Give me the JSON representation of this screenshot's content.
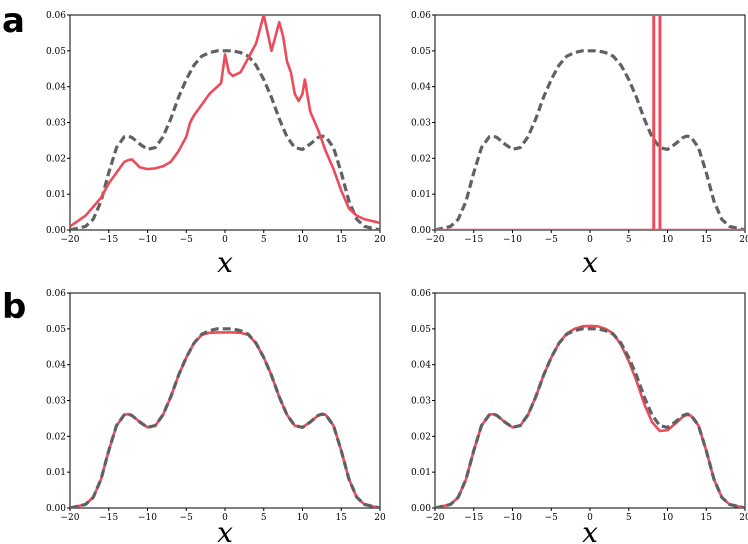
{
  "panel_labels": [
    "a",
    "b"
  ],
  "colors": {
    "reference": "#5f6262",
    "estimate": "#ee4b5a"
  },
  "chart_data": [
    {
      "type": "line",
      "panel": "a-left",
      "xlabel": "x",
      "ylabel": "",
      "xlim": [
        -20,
        20
      ],
      "ylim": [
        0,
        0.06
      ],
      "xticks": [
        -20,
        -15,
        -10,
        -5,
        0,
        5,
        10,
        15,
        20
      ],
      "yticks": [
        0.0,
        0.01,
        0.02,
        0.03,
        0.04,
        0.05,
        0.06
      ],
      "tick_labels_x": [
        "−20",
        "−15",
        "−10",
        "−5",
        "0",
        "5",
        "10",
        "15",
        "20"
      ],
      "tick_labels_y": [
        "0.00",
        "0.01",
        "0.02",
        "0.03",
        "0.04",
        "0.05",
        "0.06"
      ],
      "grid": false,
      "legend": "none",
      "series": [
        {
          "style": "dashed",
          "color": "#5f6262",
          "x": [
            -20,
            -18,
            -17,
            -16,
            -15,
            -14,
            -13,
            -12.5,
            -12,
            -11,
            -10,
            -9,
            -8,
            -7,
            -6,
            -5,
            -4,
            -3,
            -2,
            -1,
            0,
            1,
            2,
            3,
            4,
            5,
            6,
            7,
            8,
            9,
            10,
            11,
            12,
            12.5,
            13,
            14,
            15,
            16,
            17,
            18,
            20
          ],
          "y": [
            0,
            0.001,
            0.003,
            0.008,
            0.016,
            0.023,
            0.026,
            0.0262,
            0.0258,
            0.024,
            0.0225,
            0.023,
            0.026,
            0.031,
            0.037,
            0.042,
            0.046,
            0.0485,
            0.0495,
            0.05,
            0.05,
            0.05,
            0.0495,
            0.0485,
            0.046,
            0.042,
            0.037,
            0.031,
            0.026,
            0.023,
            0.0225,
            0.024,
            0.0258,
            0.0262,
            0.026,
            0.023,
            0.016,
            0.008,
            0.003,
            0.001,
            0
          ]
        },
        {
          "style": "solid",
          "color": "#ee4b5a",
          "x": [
            -20,
            -18,
            -16,
            -15,
            -14,
            -13,
            -12.5,
            -12,
            -11,
            -10,
            -9,
            -8,
            -7,
            -6,
            -5,
            -4.5,
            -4,
            -3,
            -2,
            -1,
            -0.5,
            0,
            0.5,
            1,
            2,
            3,
            4,
            4.5,
            5,
            5.5,
            6,
            7,
            7.5,
            8,
            8.5,
            9,
            9.5,
            10,
            10.3,
            11,
            12,
            13,
            14,
            15,
            16,
            17,
            18,
            20
          ],
          "y": [
            0.001,
            0.004,
            0.009,
            0.013,
            0.016,
            0.019,
            0.0195,
            0.0197,
            0.0175,
            0.017,
            0.0172,
            0.0178,
            0.019,
            0.022,
            0.026,
            0.03,
            0.032,
            0.035,
            0.038,
            0.04,
            0.041,
            0.049,
            0.044,
            0.043,
            0.044,
            0.048,
            0.052,
            0.056,
            0.06,
            0.055,
            0.05,
            0.058,
            0.054,
            0.047,
            0.044,
            0.038,
            0.036,
            0.038,
            0.042,
            0.033,
            0.028,
            0.022,
            0.017,
            0.011,
            0.006,
            0.004,
            0.003,
            0.002
          ]
        }
      ]
    },
    {
      "type": "line",
      "panel": "a-right",
      "xlabel": "x",
      "ylabel": "",
      "xlim": [
        -20,
        20
      ],
      "ylim": [
        0,
        0.06
      ],
      "xticks": [
        -20,
        -15,
        -10,
        -5,
        0,
        5,
        10,
        15,
        20
      ],
      "yticks": [
        0.0,
        0.01,
        0.02,
        0.03,
        0.04,
        0.05,
        0.06
      ],
      "tick_labels_x": [
        "−20",
        "−15",
        "−10",
        "−5",
        "0",
        "5",
        "10",
        "15",
        "20"
      ],
      "tick_labels_y": [
        "0.00",
        "0.01",
        "0.02",
        "0.03",
        "0.04",
        "0.05",
        "0.06"
      ],
      "grid": false,
      "legend": "none",
      "series": [
        {
          "style": "dashed",
          "color": "#5f6262",
          "x": [
            -20,
            -18,
            -17,
            -16,
            -15,
            -14,
            -13,
            -12.5,
            -12,
            -11,
            -10,
            -9,
            -8,
            -7,
            -6,
            -5,
            -4,
            -3,
            -2,
            -1,
            0,
            1,
            2,
            3,
            4,
            5,
            6,
            7,
            8,
            9,
            10,
            11,
            12,
            12.5,
            13,
            14,
            15,
            16,
            17,
            18,
            20
          ],
          "y": [
            0,
            0.001,
            0.003,
            0.008,
            0.016,
            0.023,
            0.026,
            0.0262,
            0.0258,
            0.024,
            0.0225,
            0.023,
            0.026,
            0.031,
            0.037,
            0.042,
            0.046,
            0.0485,
            0.0495,
            0.05,
            0.05,
            0.05,
            0.0495,
            0.0485,
            0.046,
            0.042,
            0.037,
            0.031,
            0.026,
            0.023,
            0.0225,
            0.024,
            0.0258,
            0.0262,
            0.026,
            0.023,
            0.016,
            0.008,
            0.003,
            0.001,
            0
          ]
        },
        {
          "style": "solid",
          "color": "#ee4b5a",
          "x": [
            -20,
            8.2,
            8.2,
            8.25,
            8.25,
            9.0,
            9.0,
            9.05,
            9.05,
            20
          ],
          "y": [
            0,
            0,
            0.065,
            0.065,
            0,
            0,
            0.065,
            0.065,
            0,
            0
          ]
        }
      ]
    },
    {
      "type": "line",
      "panel": "b-left",
      "xlabel": "x",
      "ylabel": "",
      "xlim": [
        -20,
        20
      ],
      "ylim": [
        0,
        0.06
      ],
      "xticks": [
        -20,
        -15,
        -10,
        -5,
        0,
        5,
        10,
        15,
        20
      ],
      "yticks": [
        0.0,
        0.01,
        0.02,
        0.03,
        0.04,
        0.05,
        0.06
      ],
      "tick_labels_x": [
        "−20",
        "−15",
        "−10",
        "−5",
        "0",
        "5",
        "10",
        "15",
        "20"
      ],
      "tick_labels_y": [
        "0.00",
        "0.01",
        "0.02",
        "0.03",
        "0.04",
        "0.05",
        "0.06"
      ],
      "grid": false,
      "legend": "none",
      "series": [
        {
          "style": "solid",
          "color": "#ee4b5a",
          "x": [
            -20,
            -18,
            -17,
            -16,
            -15,
            -14,
            -13,
            -12.5,
            -12,
            -11,
            -10,
            -9,
            -8,
            -7,
            -6,
            -5,
            -4,
            -3,
            -2,
            -1,
            0,
            1,
            2,
            3,
            4,
            5,
            6,
            7,
            8,
            9,
            10,
            11,
            12,
            12.5,
            13,
            14,
            15,
            16,
            17,
            18,
            20
          ],
          "y": [
            0,
            0.001,
            0.003,
            0.008,
            0.016,
            0.023,
            0.026,
            0.0262,
            0.0258,
            0.024,
            0.0225,
            0.023,
            0.026,
            0.031,
            0.037,
            0.042,
            0.046,
            0.0483,
            0.0489,
            0.049,
            0.049,
            0.049,
            0.0489,
            0.0483,
            0.046,
            0.042,
            0.037,
            0.031,
            0.026,
            0.023,
            0.0225,
            0.024,
            0.0258,
            0.0262,
            0.026,
            0.023,
            0.016,
            0.008,
            0.003,
            0.001,
            0
          ]
        },
        {
          "style": "dashed",
          "color": "#5f6262",
          "x": [
            -20,
            -18,
            -17,
            -16,
            -15,
            -14,
            -13,
            -12.5,
            -12,
            -11,
            -10,
            -9,
            -8,
            -7,
            -6,
            -5,
            -4,
            -3,
            -2,
            -1,
            0,
            1,
            2,
            3,
            4,
            5,
            6,
            7,
            8,
            9,
            10,
            11,
            12,
            12.5,
            13,
            14,
            15,
            16,
            17,
            18,
            20
          ],
          "y": [
            0,
            0.001,
            0.003,
            0.008,
            0.016,
            0.023,
            0.026,
            0.0262,
            0.0258,
            0.024,
            0.0225,
            0.023,
            0.026,
            0.031,
            0.037,
            0.042,
            0.046,
            0.0485,
            0.0495,
            0.05,
            0.05,
            0.05,
            0.0495,
            0.0485,
            0.046,
            0.042,
            0.037,
            0.031,
            0.026,
            0.023,
            0.0225,
            0.024,
            0.0258,
            0.0262,
            0.026,
            0.023,
            0.016,
            0.008,
            0.003,
            0.001,
            0
          ]
        }
      ]
    },
    {
      "type": "line",
      "panel": "b-right",
      "xlabel": "x",
      "ylabel": "",
      "xlim": [
        -20,
        20
      ],
      "ylim": [
        0,
        0.06
      ],
      "xticks": [
        -20,
        -15,
        -10,
        -5,
        0,
        5,
        10,
        15,
        20
      ],
      "yticks": [
        0.0,
        0.01,
        0.02,
        0.03,
        0.04,
        0.05,
        0.06
      ],
      "tick_labels_x": [
        "−20",
        "−15",
        "−10",
        "−5",
        "0",
        "5",
        "10",
        "15",
        "20"
      ],
      "tick_labels_y": [
        "0.00",
        "0.01",
        "0.02",
        "0.03",
        "0.04",
        "0.05",
        "0.06"
      ],
      "grid": false,
      "legend": "none",
      "series": [
        {
          "style": "solid",
          "color": "#ee4b5a",
          "x": [
            -20,
            -18,
            -17,
            -16,
            -15,
            -14,
            -13,
            -12.5,
            -12,
            -11,
            -10,
            -9,
            -8,
            -7,
            -6,
            -5,
            -4,
            -3,
            -2,
            -1,
            0,
            1,
            2,
            3,
            4,
            5,
            6,
            7,
            8,
            9,
            10,
            11,
            12,
            12.5,
            13,
            14,
            15,
            16,
            17,
            18,
            20
          ],
          "y": [
            0,
            0.001,
            0.003,
            0.008,
            0.016,
            0.023,
            0.026,
            0.0262,
            0.0258,
            0.024,
            0.0225,
            0.023,
            0.026,
            0.031,
            0.037,
            0.042,
            0.046,
            0.0487,
            0.05,
            0.0507,
            0.0508,
            0.0507,
            0.05,
            0.0487,
            0.0455,
            0.041,
            0.0355,
            0.029,
            0.024,
            0.0215,
            0.0217,
            0.0235,
            0.0255,
            0.026,
            0.0258,
            0.023,
            0.016,
            0.008,
            0.003,
            0.001,
            0
          ]
        },
        {
          "style": "dashed",
          "color": "#5f6262",
          "x": [
            -20,
            -18,
            -17,
            -16,
            -15,
            -14,
            -13,
            -12.5,
            -12,
            -11,
            -10,
            -9,
            -8,
            -7,
            -6,
            -5,
            -4,
            -3,
            -2,
            -1,
            0,
            1,
            2,
            3,
            4,
            5,
            6,
            7,
            8,
            9,
            10,
            11,
            12,
            12.5,
            13,
            14,
            15,
            16,
            17,
            18,
            20
          ],
          "y": [
            0,
            0.001,
            0.003,
            0.008,
            0.016,
            0.023,
            0.026,
            0.0262,
            0.0258,
            0.024,
            0.0225,
            0.023,
            0.026,
            0.031,
            0.037,
            0.042,
            0.046,
            0.0485,
            0.0495,
            0.05,
            0.05,
            0.05,
            0.0495,
            0.0485,
            0.046,
            0.042,
            0.037,
            0.031,
            0.026,
            0.023,
            0.0225,
            0.024,
            0.0258,
            0.0262,
            0.026,
            0.023,
            0.016,
            0.008,
            0.003,
            0.001,
            0
          ]
        }
      ]
    }
  ]
}
